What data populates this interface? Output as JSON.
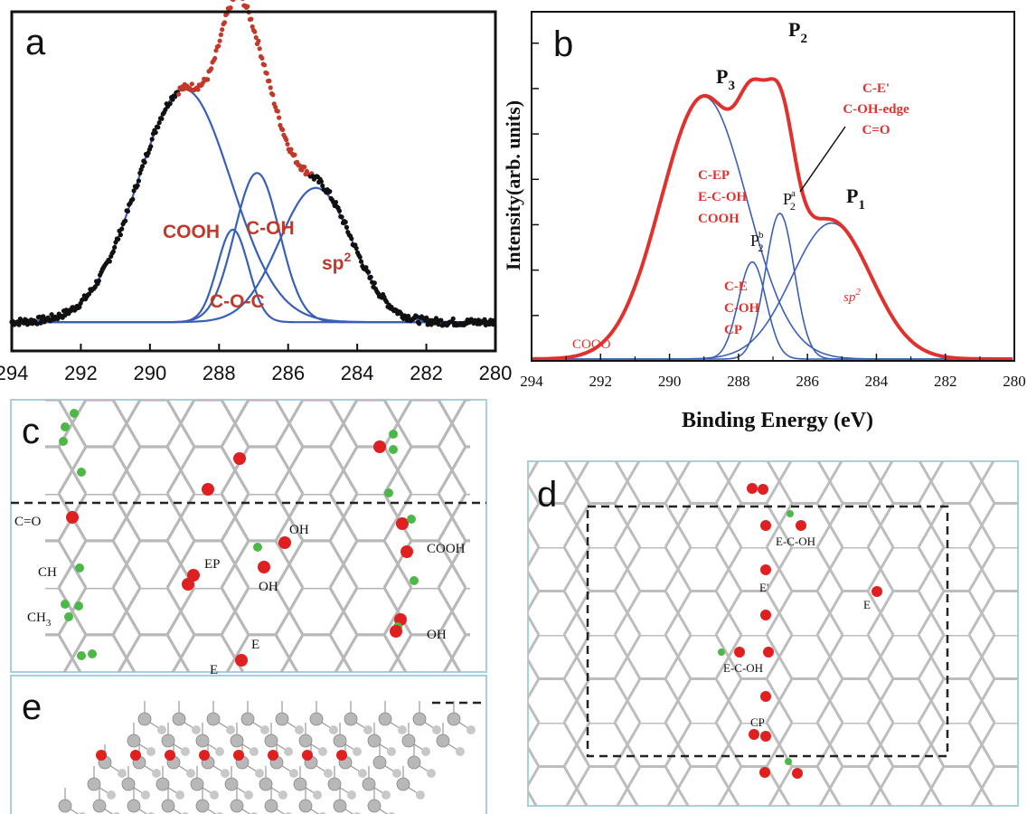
{
  "chart_data": [
    {
      "panel": "a",
      "type": "line",
      "x_ticks": [
        "294",
        "292",
        "290",
        "288",
        "286",
        "284",
        "282",
        "280"
      ],
      "xlim": [
        294,
        280
      ],
      "series": [
        {
          "name": "COOH",
          "center": 289.0,
          "amplitude": 0.78,
          "width": 1.35
        },
        {
          "name": "C-O-C",
          "center": 287.6,
          "amplitude": 0.31,
          "width": 0.45
        },
        {
          "name": "C-OH",
          "center": 286.9,
          "amplitude": 0.5,
          "width": 0.65
        },
        {
          "name": "sp2",
          "center": 285.2,
          "amplitude": 0.45,
          "width": 1.05
        }
      ],
      "labels": [
        "COOH",
        "C-OH",
        "C-O-C",
        "sp"
      ],
      "sp_sup": "2",
      "colors": {
        "measured_low": "#111111",
        "measured_high": "#c0392b",
        "components": "#3a5fb8",
        "label": "#c0392b"
      }
    },
    {
      "panel": "b",
      "type": "line",
      "x_ticks": [
        "294",
        "292",
        "290",
        "288",
        "286",
        "284",
        "282",
        "280"
      ],
      "xlim": [
        294,
        280
      ],
      "xlabel": "Binding Energy (eV)",
      "ylabel": "Intensity(arb. units)",
      "series": [
        {
          "name": "P3",
          "center": 289.0,
          "amplitude": 0.81,
          "width": 1.25
        },
        {
          "name": "P2b",
          "center": 287.6,
          "amplitude": 0.3,
          "width": 0.4
        },
        {
          "name": "P2a",
          "center": 286.8,
          "amplitude": 0.45,
          "width": 0.42
        },
        {
          "name": "P1",
          "center": 285.3,
          "amplitude": 0.42,
          "width": 1.15
        }
      ],
      "peak_labels": [
        {
          "main": "P",
          "sub": "3",
          "sup": ""
        },
        {
          "main": "P",
          "sub": "2",
          "sup": ""
        },
        {
          "main": "P",
          "sub": "1",
          "sup": ""
        },
        {
          "main": "P",
          "sub": "2",
          "sup": "a"
        },
        {
          "main": "P",
          "sub": "2",
          "sup": "b"
        }
      ],
      "group_labels": [
        [
          "C-E'",
          "C-OH-edge",
          "C=O"
        ],
        [
          "C-EP",
          "E-C-OH",
          "COOH"
        ],
        [
          "C-E",
          "C-OH",
          "CP"
        ]
      ],
      "sp_label": "sp",
      "sp_sup": "2",
      "cooo_label": "COOO",
      "colors": {
        "envelope": "#e0312d",
        "components": "#3a5fb8",
        "label": "#e0312d"
      }
    }
  ],
  "panels": {
    "a": "a",
    "b": "b",
    "c": "c",
    "d": "d",
    "e": "e"
  },
  "panel_c": {
    "labels": {
      "c_o": "C=O",
      "cooh": "COOH",
      "ch": "CH",
      "ch3_main": "CH",
      "ch3_sub": "3",
      "oh1": "OH",
      "oh2": "OH",
      "oh3": "OH",
      "ep": "EP",
      "e1": "E",
      "e2": "E"
    }
  },
  "panel_d": {
    "labels": {
      "ecoh1": "E-C-OH",
      "e_prime": "E'",
      "e": "E",
      "ecoh2": "E-C-OH",
      "cp": "CP"
    }
  }
}
